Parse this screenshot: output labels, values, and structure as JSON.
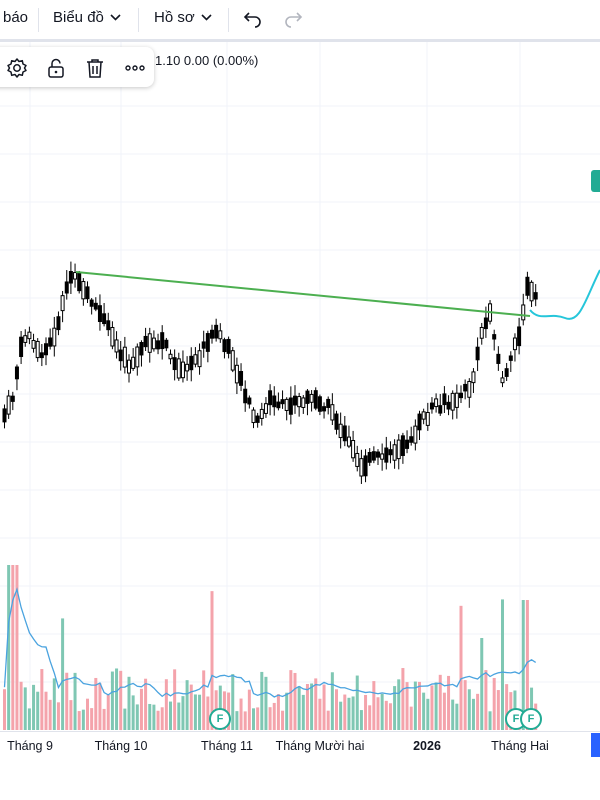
{
  "toolbar": {
    "alerts_label": "báo",
    "chart_menu_label": "Biểu đồ",
    "profile_menu_label": "Hồ sơ",
    "undo_icon": "undo-icon",
    "redo_icon": "redo-icon"
  },
  "legend": {
    "text": "1.10  0.00 (0.00%)"
  },
  "tools": [
    "settings-icon",
    "unlock-icon",
    "trash-icon",
    "more-icon"
  ],
  "colors": {
    "up": "#ffffff",
    "down": "#000000",
    "trendline": "#4caf50",
    "forecast": "#26c6da",
    "vol_up": "#7fc7b3",
    "vol_down": "#f4a3ab",
    "ma": "#4aa3df",
    "badge": "#22ab94"
  },
  "chart_data": {
    "type": "candlestick",
    "x_labels": [
      "Tháng 9",
      "Tháng 10",
      "Tháng 11",
      "Tháng Mười hai",
      "2026",
      "Tháng Hai"
    ],
    "x_labels_bold": [
      "2026"
    ],
    "event_markers": [
      "F",
      "F",
      "F"
    ],
    "trendline": true,
    "forecast_curve": true,
    "volume_ma": true
  }
}
